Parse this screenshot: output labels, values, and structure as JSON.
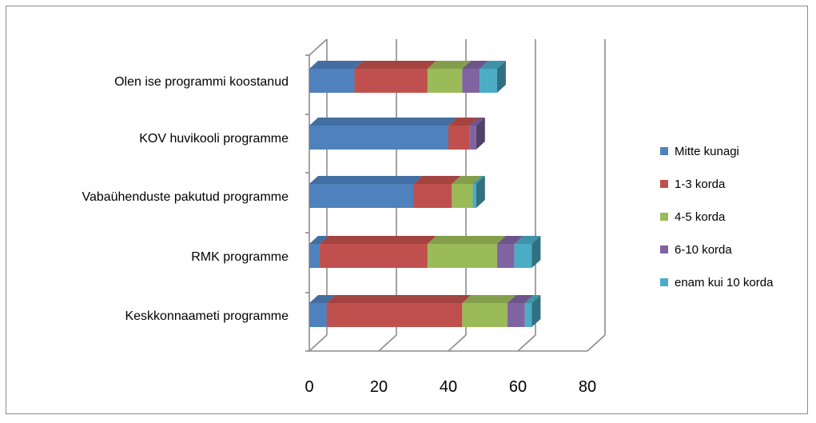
{
  "chart_data": {
    "type": "bar",
    "orientation": "horizontal",
    "stacked": true,
    "style": "3d",
    "categories": [
      "Olen ise programmi koostanud",
      "KOV huvikooli programme",
      "Vabaühenduste pakutud programme",
      "RMK programme",
      "Keskkonnaameti programme"
    ],
    "series": [
      {
        "name": "Mitte kunagi",
        "color": "#4F81BD",
        "values": [
          13,
          40,
          30,
          3,
          5
        ]
      },
      {
        "name": "1-3 korda",
        "color": "#C0504D",
        "values": [
          21,
          6,
          11,
          31,
          39
        ]
      },
      {
        "name": "4-5 korda",
        "color": "#9BBB59",
        "values": [
          10,
          0,
          6,
          20,
          13
        ]
      },
      {
        "name": "6-10  korda",
        "color": "#8064A2",
        "values": [
          5,
          2,
          0,
          5,
          5
        ]
      },
      {
        "name": "enam kui 10 korda",
        "color": "#4BACC6",
        "values": [
          5,
          0,
          1,
          5,
          2
        ]
      }
    ],
    "x_ticks": [
      "0",
      "20",
      "40",
      "60",
      "80"
    ],
    "xlim": [
      0,
      80
    ],
    "legend_position": "right",
    "grid": true
  }
}
